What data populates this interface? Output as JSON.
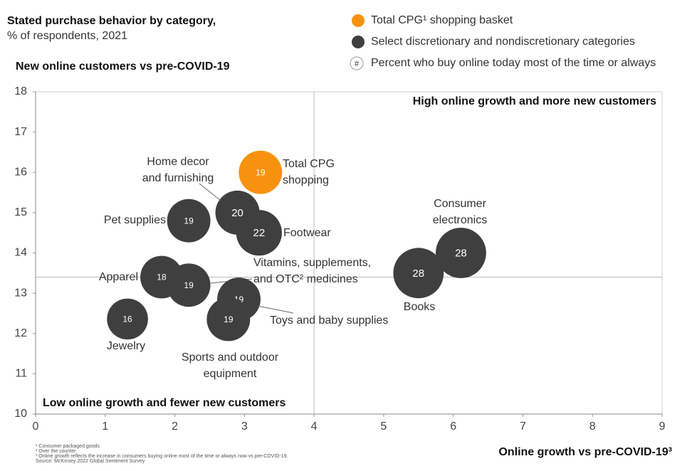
{
  "chart_data": {
    "type": "bubble",
    "title": "Stated purchase behavior by category,",
    "subtitle": "% of respondents, 2021",
    "y_axis_title": "New online customers vs pre-COVID-19",
    "x_axis_title": "Online growth vs pre-COVID-19³",
    "quadrant_labels": [
      "High online growth and more new customers",
      "Low online growth and fewer new customers"
    ],
    "legend_note": {
      "symbol": "#",
      "text": "Percent who buy online today most of the time or always"
    },
    "xlim": [
      0,
      9
    ],
    "xticks": [
      0,
      1,
      2,
      3,
      4,
      5,
      6,
      7,
      8,
      9
    ],
    "ylim": [
      10,
      18
    ],
    "yticks": [
      10,
      11,
      12,
      13,
      14,
      15,
      16,
      17,
      18
    ],
    "reference_lines": {
      "x": 4,
      "y": 13.4
    },
    "series": [
      {
        "name": "Total CPG¹ shopping basket",
        "color": "#f7920f",
        "names": [
          [
            "Total CPG",
            "shopping"
          ]
        ],
        "x": [
          3.23
        ],
        "values": [
          16.0
        ],
        "sizes": [
          19
        ]
      },
      {
        "name": "Select discretionary and nondiscretionary categories",
        "color": "#3f3f3f",
        "names": [
          [
            "Home decor",
            "and furnishing"
          ],
          [
            "Footwear"
          ],
          [
            "Pet supplies"
          ],
          [
            "Consumer",
            "electronics"
          ],
          [
            "Books"
          ],
          [
            "Apparel"
          ],
          [
            "Vitamins, supplements,",
            "and OTC² medicines"
          ],
          [
            "Toys and baby supplies"
          ],
          [
            "Sports and outdoor",
            "equipment"
          ],
          [
            "Jewelry"
          ]
        ],
        "x": [
          2.9,
          3.21,
          2.2,
          6.11,
          5.5,
          1.81,
          2.2,
          2.92,
          2.77,
          1.32
        ],
        "values": [
          15.0,
          14.5,
          14.8,
          14.0,
          13.5,
          13.4,
          13.2,
          12.85,
          12.35,
          12.36
        ],
        "sizes": [
          20,
          22,
          19,
          28,
          28,
          18,
          19,
          19,
          19,
          16
        ]
      }
    ],
    "footnotes": [
      "¹ Consumer packaged goods.",
      "² Over the counter.",
      "³ Online growth reflects the increase in consumers buying online most of the time or always now vs pre-COVID-19.",
      "Source: McKinsey 2022 Global Sentiment Survey"
    ]
  }
}
